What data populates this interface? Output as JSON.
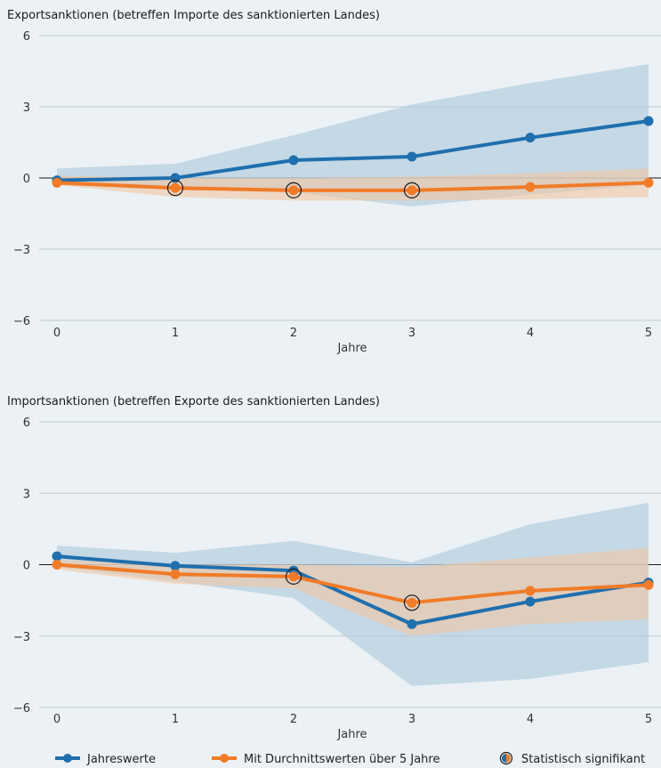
{
  "colors": {
    "background": "#ebf1f4",
    "blue": "#1f6fae",
    "orange": "#f07b28",
    "blue_band": "#b7cfe2",
    "orange_band": "#f2c6a2",
    "grid": "#b5bec5",
    "zero_line": "#1a1a1a"
  },
  "legend": {
    "blue_label": "Jahreswerte",
    "orange_label": "Mit Durchnittswerten über 5 Jahre",
    "sig_label": "Statistisch signifikant"
  },
  "chart_data": [
    {
      "type": "line",
      "title": "Exportsanktionen (betreffen Importe des sanktionierten Landes)",
      "xlabel": "Jahre",
      "ylabel": "",
      "x": [
        0,
        1,
        2,
        3,
        4,
        5
      ],
      "x_ticks": [
        "0",
        "1",
        "2",
        "3",
        "4",
        "5"
      ],
      "ylim": [
        -6,
        6
      ],
      "y_ticks": [
        6,
        3,
        0,
        -3,
        -6
      ],
      "y_tick_labels": [
        "6",
        "3",
        "0",
        "−3",
        "−6"
      ],
      "grid": true,
      "series": [
        {
          "name": "Jahreswerte",
          "color": "#1f6fae",
          "values": [
            -0.1,
            0.0,
            0.75,
            0.9,
            1.7,
            2.4
          ],
          "band_upper": [
            0.4,
            0.6,
            1.8,
            3.1,
            4.0,
            4.8
          ],
          "band_lower": [
            -0.3,
            -0.5,
            -0.6,
            -1.2,
            -0.7,
            -0.3
          ],
          "significant": [
            false,
            false,
            false,
            false,
            false,
            false
          ]
        },
        {
          "name": "Mit Durchnittswerten über 5 Jahre",
          "color": "#f07b28",
          "values": [
            -0.2,
            -0.42,
            -0.52,
            -0.52,
            -0.38,
            -0.2
          ],
          "band_upper": [
            0.1,
            0.0,
            0.0,
            0.05,
            0.2,
            0.4
          ],
          "band_lower": [
            -0.3,
            -0.8,
            -0.95,
            -0.95,
            -0.9,
            -0.8
          ],
          "significant": [
            false,
            true,
            true,
            true,
            false,
            false
          ]
        }
      ]
    },
    {
      "type": "line",
      "title": "Importsanktionen (betreffen Exporte des sanktionierten Landes)",
      "xlabel": "Jahre",
      "ylabel": "",
      "x": [
        0,
        1,
        2,
        3,
        4,
        5
      ],
      "x_ticks": [
        "0",
        "1",
        "2",
        "3",
        "4",
        "5"
      ],
      "ylim": [
        -6,
        6
      ],
      "y_ticks": [
        6,
        3,
        0,
        -3,
        -6
      ],
      "y_tick_labels": [
        "6",
        "3",
        "0",
        "−3",
        "−6"
      ],
      "grid": true,
      "series": [
        {
          "name": "Jahreswerte",
          "color": "#1f6fae",
          "values": [
            0.35,
            -0.05,
            -0.25,
            -2.5,
            -1.55,
            -0.75
          ],
          "band_upper": [
            0.8,
            0.5,
            1.0,
            0.1,
            1.7,
            2.6
          ],
          "band_lower": [
            -0.1,
            -0.7,
            -1.4,
            -5.1,
            -4.8,
            -4.1
          ],
          "significant": [
            false,
            false,
            false,
            false,
            false,
            false
          ]
        },
        {
          "name": "Mit Durchnittswerten über 5 Jahre",
          "color": "#f07b28",
          "values": [
            0.0,
            -0.4,
            -0.5,
            -1.6,
            -1.1,
            -0.85
          ],
          "band_upper": [
            0.2,
            0.0,
            0.0,
            -0.1,
            0.3,
            0.7
          ],
          "band_lower": [
            -0.2,
            -0.8,
            -1.0,
            -3.0,
            -2.5,
            -2.3
          ],
          "significant": [
            false,
            false,
            true,
            true,
            false,
            false
          ]
        }
      ]
    }
  ]
}
